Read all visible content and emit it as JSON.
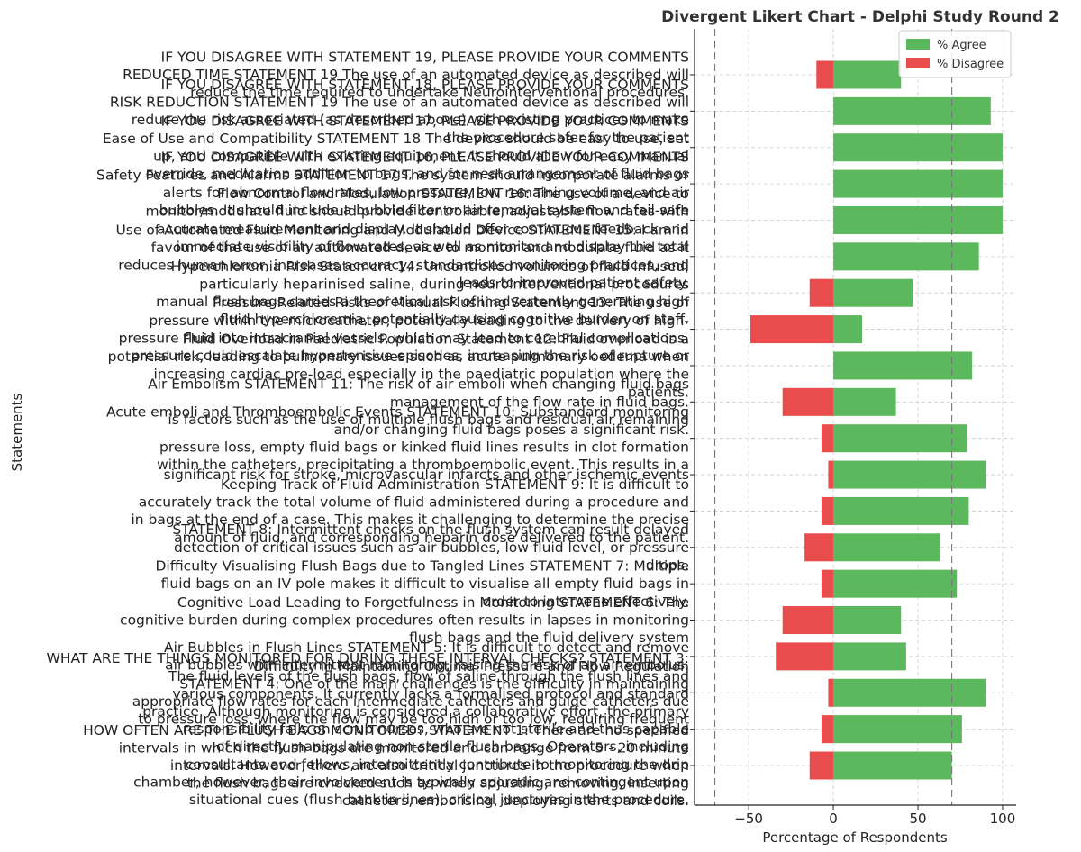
{
  "chart_data": {
    "type": "bar",
    "orientation": "horizontal-diverging",
    "title": "Divergent Likert Chart - Delphi Study Round 2",
    "xlabel": "Percentage of Respondents",
    "ylabel": "Statements",
    "xlim": [
      -82,
      108
    ],
    "xticks": [
      -50,
      0,
      50,
      100
    ],
    "xtick_labels": [
      "−50",
      "0",
      "50",
      "100"
    ],
    "reference_lines": [
      -70,
      70
    ],
    "grid": true,
    "legend_position": "top-right",
    "colors": {
      "agree": "#5cb85c",
      "disagree": "#e84c4c",
      "reference": "#777777",
      "grid": "#cccccc"
    },
    "series": [
      {
        "name": "% Agree",
        "color": "#5cb85c",
        "values": [
          70,
          76,
          90,
          43,
          40,
          73,
          63,
          80,
          90,
          79,
          37,
          82,
          17,
          47,
          86,
          100,
          100,
          100,
          93,
          40
        ]
      },
      {
        "name": "% Disagree",
        "color": "#e84c4c",
        "values": [
          -14,
          -7,
          -3,
          -34,
          -30,
          -7,
          -17,
          -7,
          -3,
          -7,
          -30,
          0,
          -49,
          -14,
          0,
          0,
          0,
          0,
          0,
          -10
        ]
      }
    ],
    "categories": [
      [
        "HOW OFTEN ARE THE FLUSH BAGS MONITORED? STATEMENT 1: There are no specified",
        "intervals in which the flush bags are monitored and can range from 5 - 20 minute",
        "intervals. However, there are also critical junctures in the procedure when",
        "the flush bags are checked such as when adjusting, removing, inserting",
        "catheters, embolising, deploying stents and coils."
      ],
      [
        "WHAT ARE THE THINGS MONITORED FOR DURING THESE INTERVAL CHECKS? STATEMENT 3:",
        "The fluid levels of the flush bags, flow of saline through the flush lines and",
        "various components. It currently lacks a formalised protocol and standard",
        "practice. Although monitoring is considered a collaborative effort, the primary",
        "responsibility falls on scrub nurses, who are not sterile and thus capable",
        "of directly manipulating non-sterile flush bags. Operators, including",
        "consultants and fellows, intermittently contribute to monitoring the drip",
        "chamber, however, their involvement is typically sporadic and contingent upon",
        "situational cues (flush back in lines), critical junctures in the procedure."
      ],
      [
        "Difficulty in Maintaining Optimal Pressure and Flow Regulation",
        "STATEMENT 4: One of the main challenges is the difficulty in maintaining",
        "appropriate flow rates for each intermediate catheters and guide catheters due",
        "to pressure loss, where the flow may be too high or too low, requiring frequent"
      ],
      [
        "Air Bubbles in Flush Lines  STATEMENT 5: It is difficult to detect and remove",
        "air bubbles with intermittent monitoring, raising the risk of an air embolus."
      ],
      [
        "Cognitive Load Leading to Forgetfulness in Monitoring  STATEMENT 6: The",
        "cognitive burden during complex procedures often results in lapses in monitoring",
        "flush bags and the fluid delivery system"
      ],
      [
        "Difficulty Visualising Flush Bags due to Tangled Lines  STATEMENT 7: Multiple",
        "fluid bags on an IV pole makes it difficult to visualise all empty fluid bags in",
        "order to intervene effectively."
      ],
      [
        "STATEMENT 8: Intermittent checks on the flush system can result delayed",
        "detection of critical issues such as air bubbles, low fluid level, or pressure",
        "drops."
      ],
      [
        "Keeping Track of Fluid Administration  STATEMENT 9: It is difficult to",
        "accurately track the total volume of fluid administered during a procedure and",
        "in bags at the end of a case. This makes it challenging to determine the precise",
        "amount of fluid, and corresponding heparin dose delivered to the patient."
      ],
      [
        "significant risk for stroke, microvascular infarcts and other ischemic events"
      ],
      [
        "Acute emboli and Thromboembolic Events  STATEMENT 10: Substandard monitoring",
        "and/or changing fluid bags poses a significant risk.",
        "pressure loss, empty fluid bags or kinked fluid lines results in clot formation",
        "within the catheters, precipitating a thromboembolic event.  This results in a"
      ],
      [
        "Air Embolism STATEMENT 11: The risk of air emboli when changing fluid bags",
        "management of the flow rate in fluid bags.",
        "is factors such as the use of multiple flush bags and residual air remaining"
      ],
      [
        "Fluid Overload in Paediatric Population Statement 12: Fluid overload is a",
        "potential risk, leading to pulmonary issues such as acute pulmonary oedema when",
        "increasing cardiac pre-load especially in the paediatric population where the",
        "patients."
      ],
      [
        "Pressure-Related Risks of Manual Flushing Statement 13: The use of",
        "pressure within the microcatheter, potentially leading to the delivery of high-",
        "pressure fluid into intracranial vessels, which may lead to cerebral complications.",
        "pressure could escalate hypertensive episodes, increasing the risk of rupture or"
      ],
      [
        "Hyperchloremia Risk Statement 14: Uncontrolled volumes of fluid infused,",
        "particularly heparinised saline, during neurointerventional procedures",
        "manual flush bags carries a theoretical risk of inadvertently generating high",
        "fluid hyperchloremia, potentially causing cognitive burden on staff."
      ],
      [
        "Use of Automated Fluid Monitoring and Modulation Device  STATEMENT 15: I am in",
        "favour of the use of an automated device to monitor and modulate fluid as it",
        "reduces human error, increases accuracy, standardises monitoring practices, and",
        "leads to improved patient safety."
      ],
      [
        "Flow Control and Modulation  STATEMENT 16: The use of a device to",
        "monitor/modulate fluid should provide controllable, adjustable flow rates with",
        "accurate measurement and display. It should offer continuous feedback and",
        "immediate visibility of flow rates, as well as monitor and display the total"
      ],
      [
        "IF YOU DISAGREE WITH STATEMENT 16, PLEASE PROVIDE YOUR COMMENTS",
        "Safety Features and Alarms STATEMENT 17 The system should incorporate alarms or",
        "alerts for abnormal flow rates, low pressure, low remaining volume, and air",
        "bubbles. It should include a bubble filter or air removal system and fail-safe"
      ],
      [
        "IF YOU DISAGREE WITH STATEMENT 17, PLEASE PROVIDE YOUR COMMENTS",
        "Ease of Use and Compatibility STATEMENT 18 The device should be easy to use, set",
        "up, and compatible with existing equipment. It should allow for easy manual",
        "override, medication addition to bags, and for neat arrangement of fluid bags"
      ],
      [
        "IF YOU DISAGREE WITH STATEMENT 18, PLEASE PROVIDE YOUR COMMENTS",
        "RISK REDUCTION STATEMENT 19 The use of an automated device as described will",
        "reduce the risk associated (as described above) with existing practices to make",
        "the procedure safer for the patient"
      ],
      [
        "IF YOU DISAGREE WITH STATEMENT 19, PLEASE PROVIDE YOUR COMMENTS",
        "REDUCED TIME STATEMENT 19 The use of an automated device as described will",
        "reduce the time required to undertake Neurointerventional procedures."
      ]
    ]
  }
}
